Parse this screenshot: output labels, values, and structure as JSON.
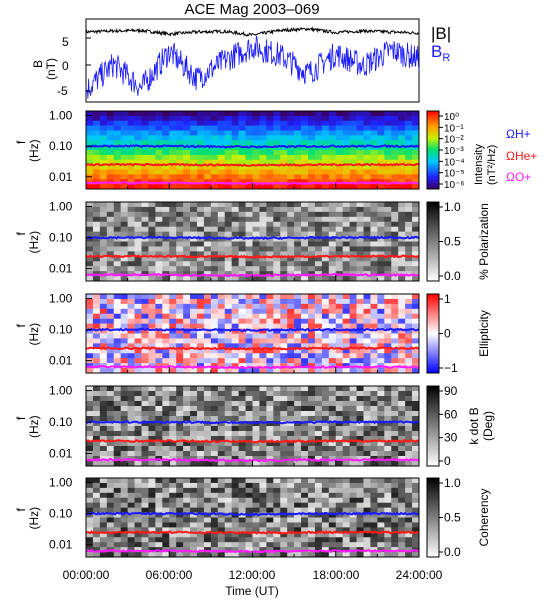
{
  "title": "ACE Mag 2003–069",
  "colors": {
    "blue": "#1a1aff",
    "red": "#ff1a1a",
    "magenta": "#ff1aff",
    "black": "#000000"
  },
  "time_axis": {
    "ticks": [
      "00:00:00",
      "06:00:00",
      "12:00:00",
      "18:00:00",
      "24:00:00"
    ],
    "label": "Time (UT)"
  },
  "freq_ticks": [
    "1.00",
    "0.10",
    "0.01"
  ],
  "panels": {
    "b": {
      "ylabel_main": "B",
      "ylabel_unit": "(nT)",
      "legend_main": "|B|",
      "legend_sub_main": "B",
      "legend_sub_sub": "R",
      "ticks": [
        "5",
        "0",
        "-5"
      ]
    },
    "intensity": {
      "ylabel_main": "f",
      "ylabel_unit": "(Hz)",
      "cbar_ticks": [
        "10⁰",
        "10⁻¹",
        "10⁻²",
        "10⁻³",
        "10⁻⁴",
        "10⁻⁵",
        "10⁻⁶"
      ],
      "cbar_label_1": "Intensity",
      "cbar_label_2": "(nT²/Hz)",
      "legend_h": "ΩH+",
      "legend_he": "ΩHe+",
      "legend_o": "ΩO+"
    },
    "polarization": {
      "ylabel_main": "f",
      "ylabel_unit": "(Hz)",
      "cbar_ticks": [
        "1.0",
        "0.5",
        "0.0"
      ],
      "cbar_label": "% Polarization"
    },
    "ellipticity": {
      "ylabel_main": "f",
      "ylabel_unit": "(Hz)",
      "cbar_ticks": [
        "1",
        "0",
        "−1"
      ],
      "cbar_label": "Ellipticity"
    },
    "kdotb": {
      "ylabel_main": "f",
      "ylabel_unit": "(Hz)",
      "cbar_ticks": [
        "90",
        "60",
        "30",
        "0"
      ],
      "cbar_label_1": "k dot B",
      "cbar_label_2": "(Deg)"
    },
    "coherency": {
      "ylabel_main": "f",
      "ylabel_unit": "(Hz)",
      "cbar_ticks": [
        "1.0",
        "0.5",
        "0.0"
      ],
      "cbar_label": "Coherency"
    }
  },
  "chart_data": [
    {
      "type": "line",
      "title": "ACE Mag 2003–069",
      "ylabel": "B (nT)",
      "xlabel": "",
      "xlim": [
        0,
        24
      ],
      "ylim": [
        -6.5,
        9.5
      ],
      "series": [
        {
          "name": "|B|",
          "color": "#000000",
          "x": [
            0,
            2,
            4,
            6,
            8,
            10,
            12,
            14,
            16,
            18,
            20,
            22,
            24
          ],
          "values": [
            7.0,
            7.2,
            7.3,
            6.6,
            7.0,
            7.1,
            6.4,
            7.3,
            7.6,
            6.9,
            7.2,
            7.0,
            6.8
          ]
        },
        {
          "name": "BR",
          "color": "#1a1aff",
          "x": [
            0,
            2,
            4,
            6,
            8,
            10,
            12,
            14,
            16,
            18,
            20,
            22,
            24
          ],
          "values": [
            -4.2,
            0.8,
            -3.8,
            3.2,
            -2.0,
            1.5,
            4.2,
            2.5,
            -1.0,
            2.8,
            0.5,
            3.5,
            1.8
          ]
        }
      ]
    },
    {
      "type": "heatmap",
      "title": "",
      "ylabel": "f (Hz)",
      "xlabel": "",
      "yscale": "log",
      "ylim": [
        0.004,
        1.4
      ],
      "xlim": [
        0,
        24
      ],
      "series": [
        {
          "name": "ΩH+",
          "color": "#1a1aff",
          "x": [
            0,
            6,
            12,
            18,
            24
          ],
          "values": [
            0.1,
            0.1,
            0.095,
            0.1,
            0.1
          ]
        },
        {
          "name": "ΩHe+",
          "color": "#ff1a1a",
          "x": [
            0,
            6,
            12,
            18,
            24
          ],
          "values": [
            0.025,
            0.025,
            0.024,
            0.025,
            0.025
          ]
        },
        {
          "name": "ΩO+",
          "color": "#ff1aff",
          "x": [
            0,
            6,
            12,
            18,
            24
          ],
          "values": [
            0.0063,
            0.0063,
            0.006,
            0.0063,
            0.0063
          ]
        }
      ]
    },
    {
      "type": "heatmap",
      "title": "",
      "ylabel": "f (Hz)",
      "xlabel": "",
      "yscale": "log",
      "ylim": [
        0.004,
        1.4
      ],
      "xlim": [
        0,
        24
      ]
    },
    {
      "type": "heatmap",
      "title": "",
      "ylabel": "f (Hz)",
      "xlabel": "",
      "yscale": "log",
      "ylim": [
        0.004,
        1.4
      ],
      "xlim": [
        0,
        24
      ]
    },
    {
      "type": "heatmap",
      "title": "",
      "ylabel": "f (Hz)",
      "xlabel": "",
      "yscale": "log",
      "ylim": [
        0.004,
        1.4
      ],
      "xlim": [
        0,
        24
      ]
    },
    {
      "type": "heatmap",
      "title": "",
      "ylabel": "f (Hz)",
      "xlabel": "Time (UT)",
      "yscale": "log",
      "ylim": [
        0.004,
        1.4
      ],
      "xlim": [
        0,
        24
      ]
    }
  ]
}
